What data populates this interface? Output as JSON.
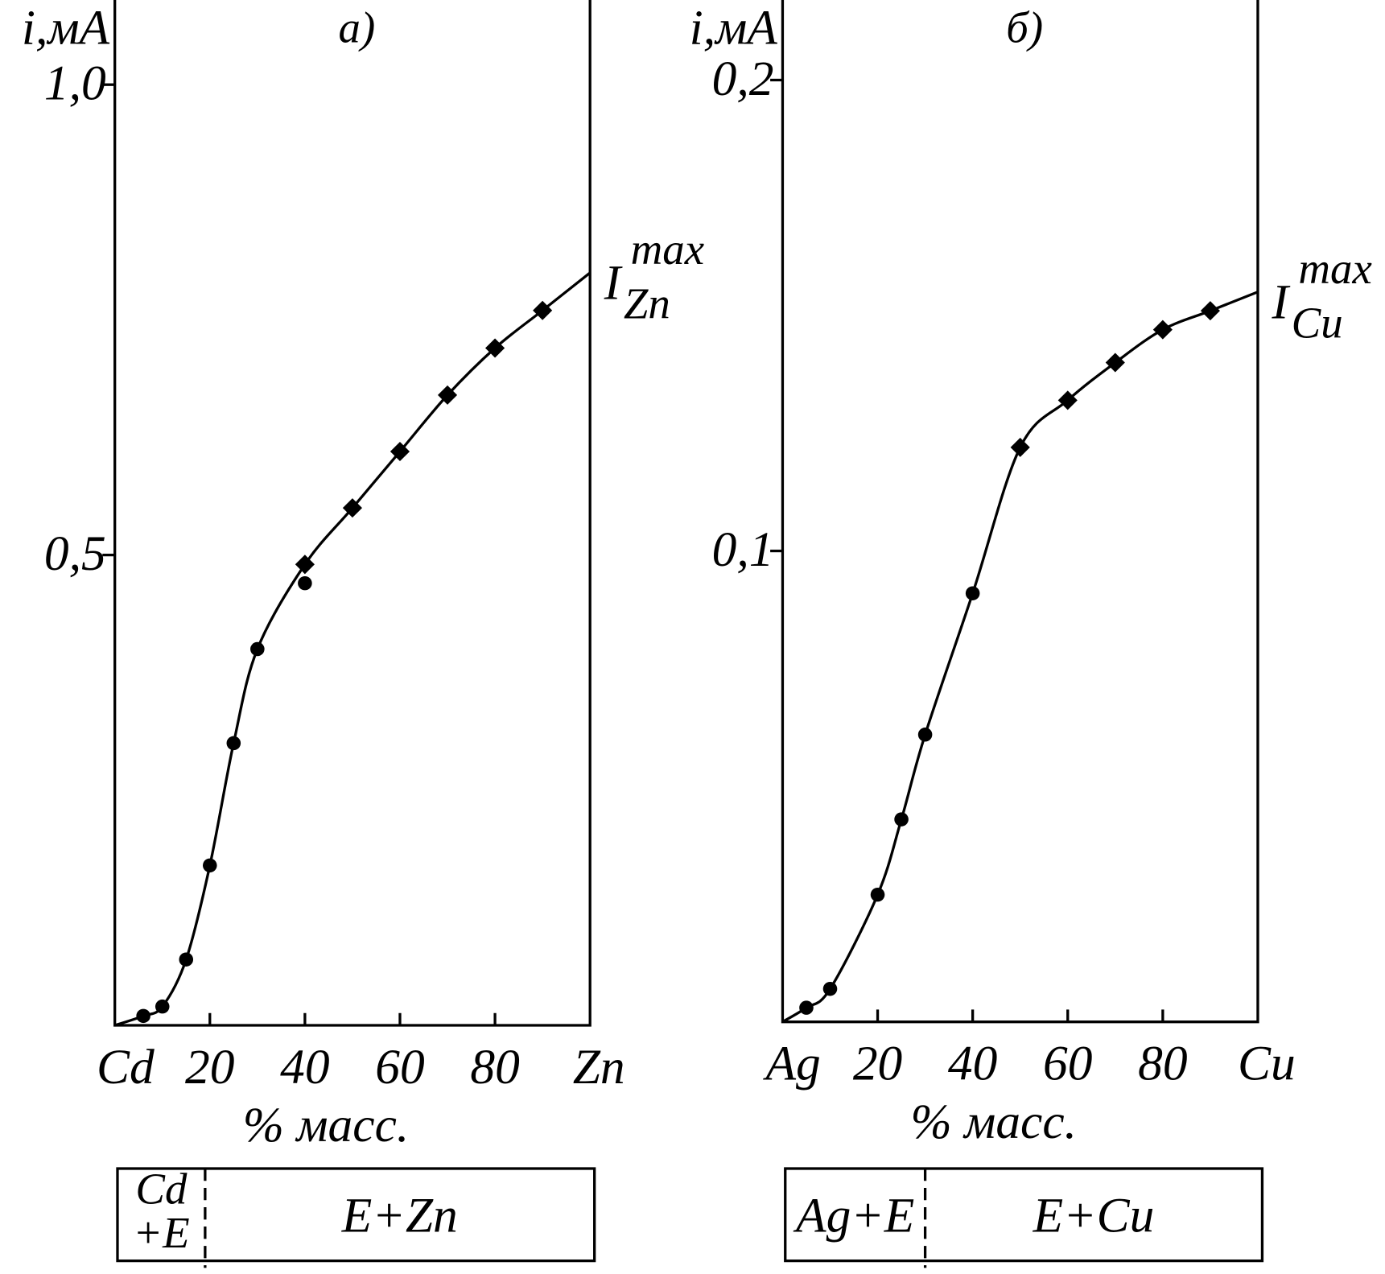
{
  "chart_data": [
    {
      "type": "line",
      "panel_label": "а)",
      "y_label": "i,мА",
      "x_label": "% масс.",
      "curve_label": {
        "main": "I",
        "sup": "max",
        "sub": "Zn"
      },
      "xlim": [
        0,
        100
      ],
      "ylim": [
        0,
        1.09
      ],
      "xticks": [
        {
          "value": 0,
          "label": "Cd"
        },
        20,
        40,
        60,
        80,
        {
          "value": 100,
          "label": "Zn"
        }
      ],
      "yticks": [
        {
          "value": 0.5,
          "label": "0,5"
        },
        {
          "value": 1.0,
          "label": "1,0"
        }
      ],
      "series": [
        {
          "marker": "none",
          "color": "#000",
          "x": [
            0,
            6,
            10,
            15,
            20,
            25,
            30,
            40,
            50,
            60,
            70,
            80,
            90,
            100
          ],
          "values": [
            0,
            0.01,
            0.02,
            0.07,
            0.17,
            0.3,
            0.4,
            0.49,
            0.55,
            0.61,
            0.67,
            0.72,
            0.76,
            0.8
          ]
        },
        {
          "marker": "circle",
          "color": "#000",
          "x": [
            6,
            10,
            15,
            20,
            25,
            30,
            40
          ],
          "values": [
            0.01,
            0.02,
            0.07,
            0.17,
            0.3,
            0.4,
            0.47
          ]
        },
        {
          "marker": "diamond",
          "color": "#000",
          "x": [
            40,
            50,
            60,
            70,
            80,
            90
          ],
          "values": [
            0.49,
            0.55,
            0.61,
            0.67,
            0.72,
            0.76
          ]
        }
      ],
      "phases": {
        "boundary": 19,
        "left": [
          "Cd",
          "+E"
        ],
        "right": "E+Zn"
      }
    },
    {
      "type": "line",
      "panel_label": "б)",
      "y_label": "i,мА",
      "x_label": "% масс.",
      "curve_label": {
        "main": "I",
        "sup": "max",
        "sub": "Cu"
      },
      "xlim": [
        0,
        100
      ],
      "ylim": [
        0,
        0.217
      ],
      "xticks": [
        {
          "value": 0,
          "label": "Ag"
        },
        20,
        40,
        60,
        80,
        {
          "value": 100,
          "label": "Cu"
        }
      ],
      "yticks": [
        {
          "value": 0.1,
          "label": "0,1"
        },
        {
          "value": 0.2,
          "label": "0,2"
        }
      ],
      "series": [
        {
          "marker": "none",
          "color": "#000",
          "x": [
            0,
            5,
            10,
            20,
            25,
            30,
            40,
            50,
            60,
            70,
            80,
            90,
            100
          ],
          "values": [
            0,
            0.003,
            0.007,
            0.027,
            0.043,
            0.061,
            0.091,
            0.122,
            0.132,
            0.14,
            0.147,
            0.151,
            0.155
          ]
        },
        {
          "marker": "circle",
          "color": "#000",
          "x": [
            5,
            10,
            20,
            25,
            30,
            40
          ],
          "values": [
            0.003,
            0.007,
            0.027,
            0.043,
            0.061,
            0.091
          ]
        },
        {
          "marker": "diamond",
          "color": "#000",
          "x": [
            50,
            60,
            70,
            80,
            90
          ],
          "values": [
            0.122,
            0.132,
            0.14,
            0.147,
            0.151
          ]
        }
      ],
      "phases": {
        "boundary": 30,
        "left": [
          "Ag+E"
        ],
        "right": "E+Cu"
      }
    }
  ]
}
